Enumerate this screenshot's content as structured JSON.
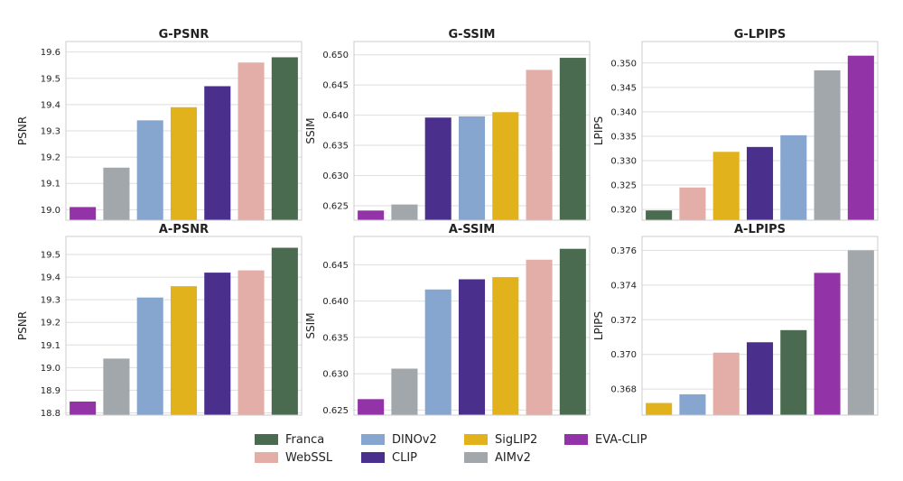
{
  "colors": {
    "Franca": "#4a6b4f",
    "WebSSL": "#e2aea7",
    "DINOv2": "#86a6d0",
    "CLIP": "#4a2f8c",
    "SigLIP2": "#e2b21c",
    "AIMv2": "#a2a7ab",
    "EVA-CLIP": "#9234a8"
  },
  "legend": {
    "items": [
      "Franca",
      "WebSSL",
      "DINOv2",
      "CLIP",
      "SigLIP2",
      "AIMv2",
      "EVA-CLIP"
    ]
  },
  "chart_data": [
    {
      "type": "bar",
      "title": "G-PSNR",
      "ylabel": "PSNR",
      "categories": [
        "EVA-CLIP",
        "AIMv2",
        "DINOv2",
        "SigLIP2",
        "CLIP",
        "WebSSL",
        "Franca"
      ],
      "values": [
        19.01,
        19.16,
        19.34,
        19.39,
        19.47,
        19.56,
        19.58
      ],
      "ylim": [
        18.96,
        19.64
      ],
      "yticks": [
        19.0,
        19.1,
        19.2,
        19.3,
        19.4,
        19.5,
        19.6
      ],
      "tickDecimals": 1
    },
    {
      "type": "bar",
      "title": "G-SSIM",
      "ylabel": "SSIM",
      "categories": [
        "EVA-CLIP",
        "AIMv2",
        "CLIP",
        "DINOv2",
        "SigLIP2",
        "WebSSL",
        "Franca"
      ],
      "values": [
        0.6242,
        0.6252,
        0.6396,
        0.6398,
        0.6405,
        0.6475,
        0.6495
      ],
      "ylim": [
        0.6226,
        0.6522
      ],
      "yticks": [
        0.625,
        0.63,
        0.635,
        0.64,
        0.645,
        0.65
      ],
      "tickDecimals": 3
    },
    {
      "type": "bar",
      "title": "G-LPIPS",
      "ylabel": "LPIPS",
      "categories": [
        "Franca",
        "WebSSL",
        "SigLIP2",
        "CLIP",
        "DINOv2",
        "AIMv2",
        "EVA-CLIP"
      ],
      "values": [
        0.3198,
        0.3245,
        0.3318,
        0.3328,
        0.3352,
        0.3485,
        0.3515
      ],
      "ylim": [
        0.3178,
        0.3544
      ],
      "yticks": [
        0.32,
        0.325,
        0.33,
        0.335,
        0.34,
        0.345,
        0.35
      ],
      "tickDecimals": 3
    },
    {
      "type": "bar",
      "title": "A-PSNR",
      "ylabel": "PSNR",
      "categories": [
        "EVA-CLIP",
        "AIMv2",
        "DINOv2",
        "SigLIP2",
        "CLIP",
        "WebSSL",
        "Franca"
      ],
      "values": [
        18.85,
        19.04,
        19.31,
        19.36,
        19.42,
        19.43,
        19.53
      ],
      "ylim": [
        18.79,
        19.58
      ],
      "yticks": [
        18.8,
        18.9,
        19.0,
        19.1,
        19.2,
        19.3,
        19.4,
        19.5
      ],
      "tickDecimals": 1
    },
    {
      "type": "bar",
      "title": "A-SSIM",
      "ylabel": "SSIM",
      "categories": [
        "EVA-CLIP",
        "AIMv2",
        "DINOv2",
        "CLIP",
        "SigLIP2",
        "WebSSL",
        "Franca"
      ],
      "values": [
        0.6265,
        0.6307,
        0.6416,
        0.643,
        0.6433,
        0.6457,
        0.6472
      ],
      "ylim": [
        0.6243,
        0.6489
      ],
      "yticks": [
        0.625,
        0.63,
        0.635,
        0.64,
        0.645
      ],
      "tickDecimals": 3
    },
    {
      "type": "bar",
      "title": "A-LPIPS",
      "ylabel": "LPIPS",
      "categories": [
        "SigLIP2",
        "DINOv2",
        "WebSSL",
        "CLIP",
        "Franca",
        "EVA-CLIP",
        "AIMv2"
      ],
      "values": [
        0.3672,
        0.3677,
        0.3701,
        0.3707,
        0.3714,
        0.3747,
        0.376
      ],
      "ylim": [
        0.3665,
        0.3768
      ],
      "yticks": [
        0.368,
        0.37,
        0.372,
        0.374,
        0.376
      ],
      "tickDecimals": 3
    }
  ]
}
